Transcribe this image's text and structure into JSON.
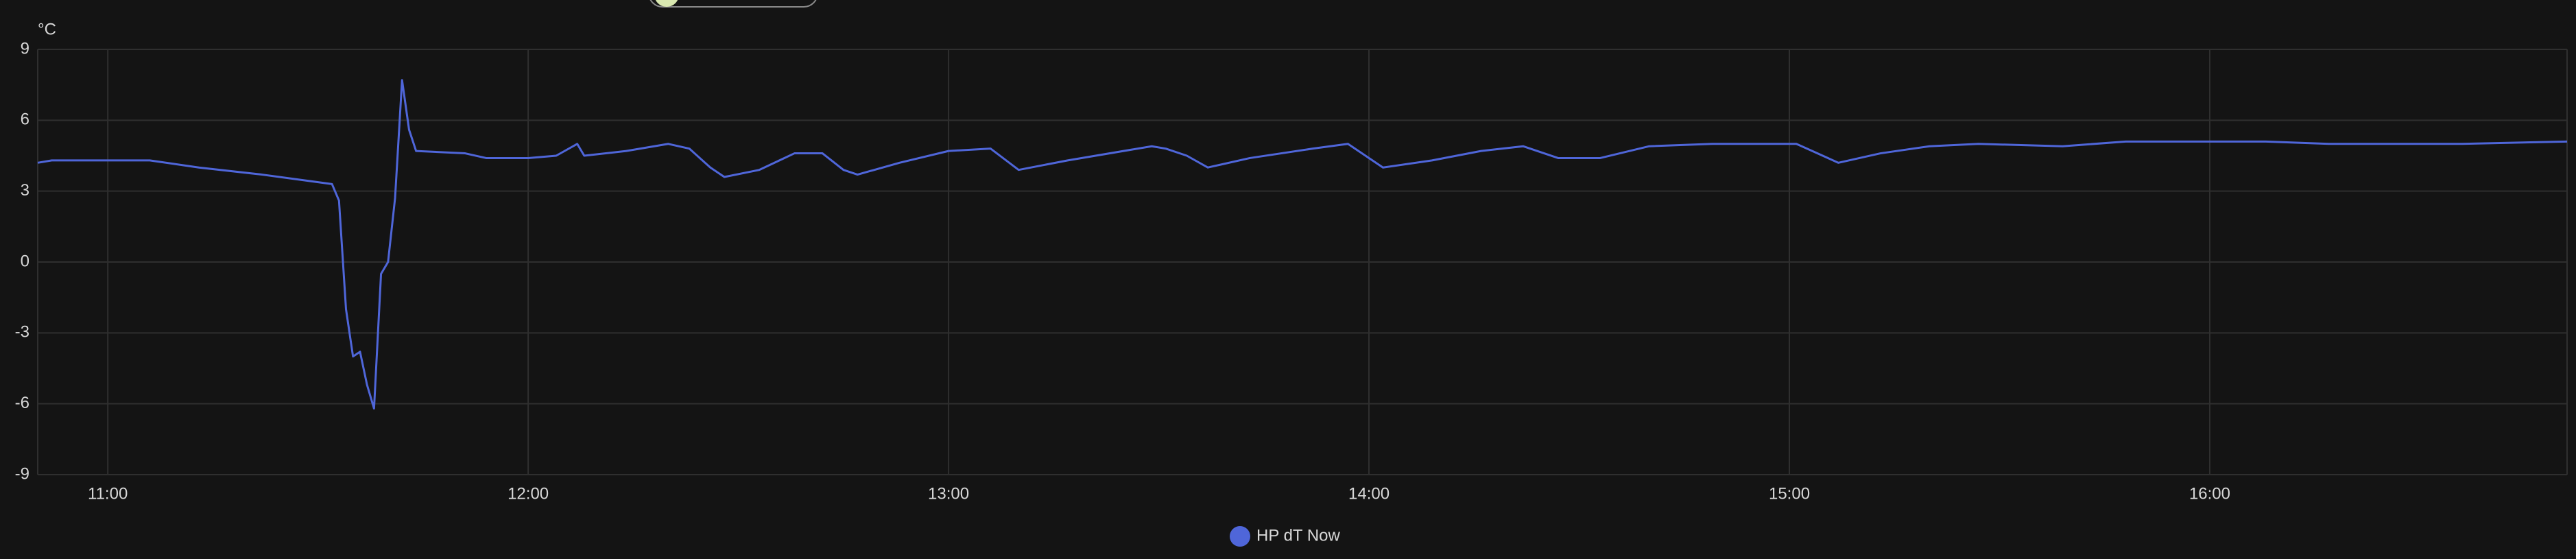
{
  "chart_data": {
    "type": "line",
    "y_label": "°C",
    "x": [
      "10:50",
      "10:52",
      "11:06",
      "11:13",
      "11:22",
      "11:32",
      "11:33",
      "11:34",
      "11:35",
      "11:36",
      "11:37",
      "11:38",
      "11:39",
      "11:40",
      "11:41",
      "11:42",
      "11:43",
      "11:44",
      "11:51",
      "11:54",
      "12:00",
      "12:04",
      "12:07",
      "12:08",
      "12:14",
      "12:20",
      "12:23",
      "12:26",
      "12:28",
      "12:33",
      "12:38",
      "12:42",
      "12:45",
      "12:47",
      "12:53",
      "13:00",
      "13:06",
      "13:10",
      "13:17",
      "13:29",
      "13:31",
      "13:34",
      "13:37",
      "13:43",
      "13:52",
      "13:57",
      "14:02",
      "14:09",
      "14:16",
      "14:22",
      "14:27",
      "14:33",
      "14:40",
      "14:49",
      "15:01",
      "15:04",
      "15:07",
      "15:13",
      "15:20",
      "15:27",
      "15:39",
      "15:48",
      "15:59",
      "16:08",
      "16:17",
      "16:22",
      "16:36",
      "16:51"
    ],
    "series": [
      {
        "name": "HP dT Now",
        "color": "#4f66d9",
        "values": [
          4.2,
          4.3,
          4.3,
          4.0,
          3.7,
          3.3,
          2.6,
          -2.0,
          -4.0,
          -3.8,
          -5.2,
          -6.2,
          -0.5,
          0,
          2.7,
          7.7,
          5.6,
          4.7,
          4.6,
          4.4,
          4.4,
          4.5,
          5.0,
          4.5,
          4.7,
          5.0,
          4.8,
          4.0,
          3.6,
          3.9,
          4.6,
          4.6,
          3.9,
          3.7,
          4.2,
          4.7,
          4.8,
          3.9,
          4.3,
          4.9,
          4.8,
          4.5,
          4.0,
          4.4,
          4.8,
          5.0,
          4.0,
          4.3,
          4.7,
          4.9,
          4.4,
          4.4,
          4.9,
          5.0,
          5.0,
          4.6,
          4.2,
          4.6,
          4.9,
          5.0,
          4.9,
          5.1,
          5.1,
          5.1,
          5.0,
          5.0,
          5.0,
          5.1
        ]
      }
    ],
    "xlim": [
      "10:50",
      "16:51"
    ],
    "xticks": [
      "11:00",
      "12:00",
      "13:00",
      "14:00",
      "15:00",
      "16:00"
    ],
    "ylim": [
      -9,
      9
    ],
    "yticks": [
      -9,
      -6,
      -3,
      0,
      3,
      6,
      9
    ],
    "grid": true
  }
}
